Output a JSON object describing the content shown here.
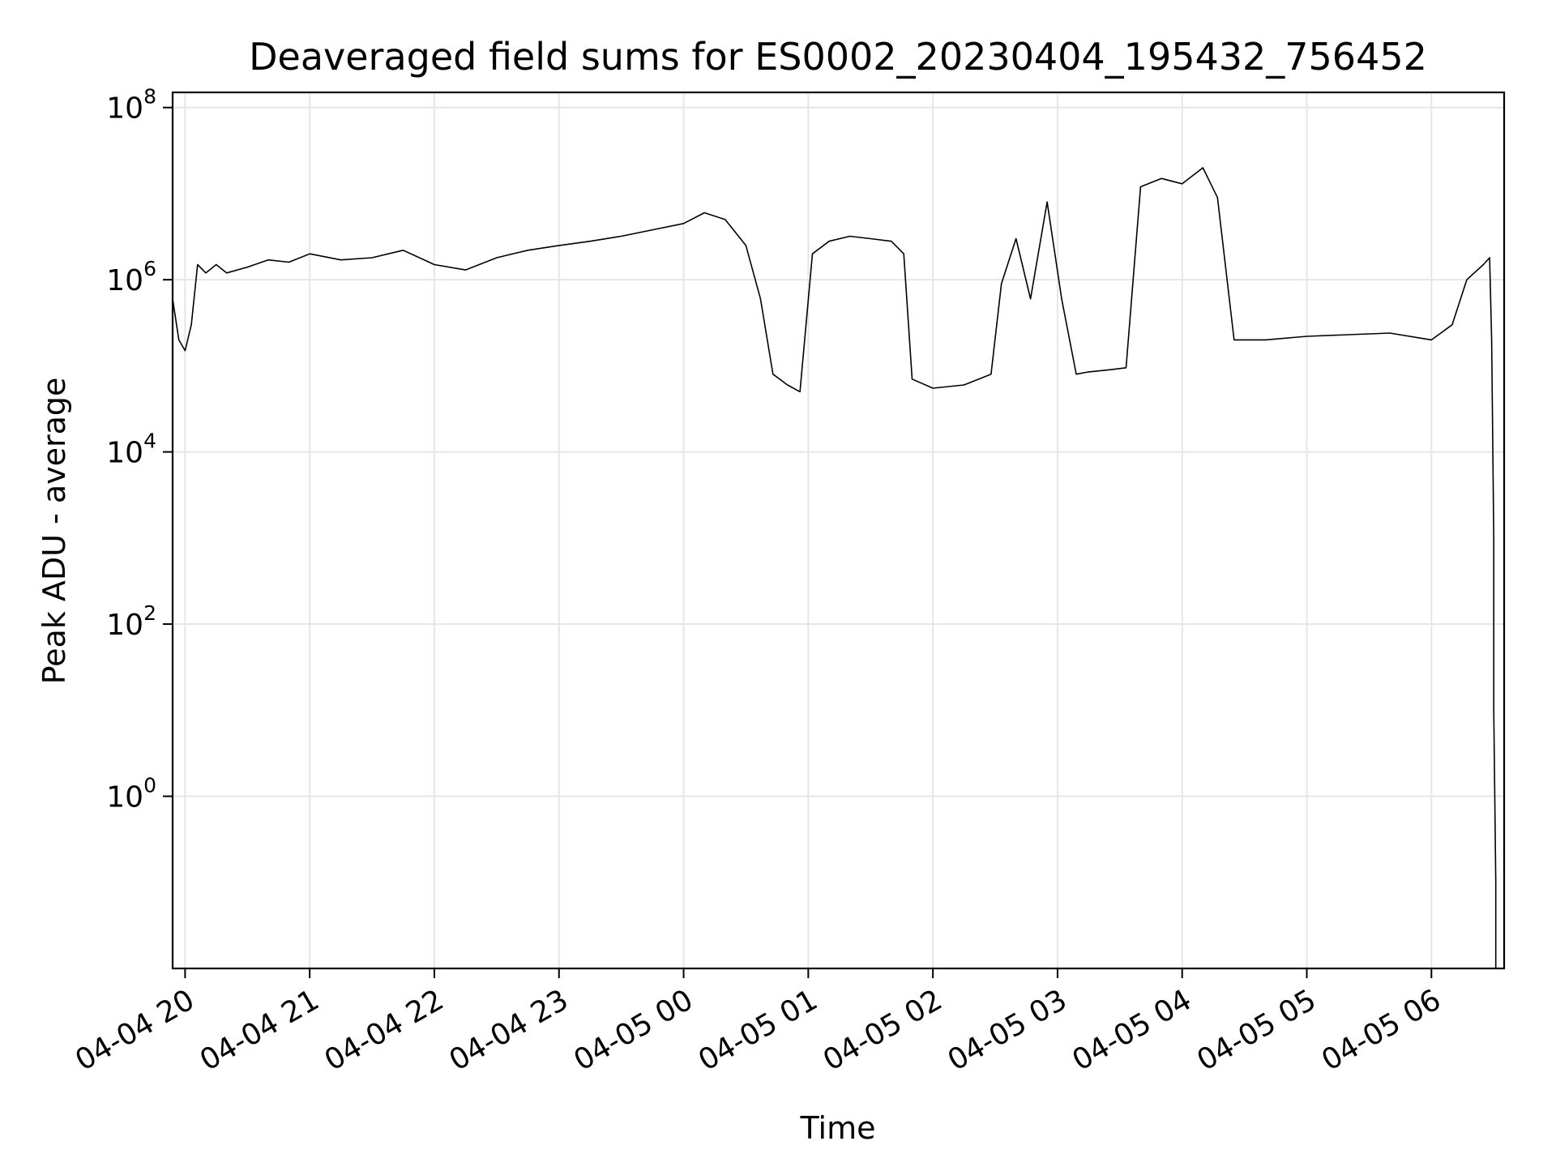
{
  "chart_data": {
    "type": "line",
    "title": "Deaveraged field sums for ES0002_20230404_195432_756452",
    "xlabel": "Time",
    "ylabel": "Peak ADU - average",
    "y_scale": "log",
    "ylim": [
      0.01,
      150000000
    ],
    "xlim": [
      "2023-04-04 19:54",
      "2023-04-05 06:35"
    ],
    "grid": true,
    "line_color": "#000000",
    "x_ticks": [
      {
        "value": "2023-04-04 20:00",
        "label": "04-04 20"
      },
      {
        "value": "2023-04-04 21:00",
        "label": "04-04 21"
      },
      {
        "value": "2023-04-04 22:00",
        "label": "04-04 22"
      },
      {
        "value": "2023-04-04 23:00",
        "label": "04-04 23"
      },
      {
        "value": "2023-04-05 00:00",
        "label": "04-05 00"
      },
      {
        "value": "2023-04-05 01:00",
        "label": "04-05 01"
      },
      {
        "value": "2023-04-05 02:00",
        "label": "04-05 02"
      },
      {
        "value": "2023-04-05 03:00",
        "label": "04-05 03"
      },
      {
        "value": "2023-04-05 04:00",
        "label": "04-05 04"
      },
      {
        "value": "2023-04-05 05:00",
        "label": "04-05 05"
      },
      {
        "value": "2023-04-05 06:00",
        "label": "04-05 06"
      }
    ],
    "y_ticks": [
      {
        "value": 1,
        "base": "10",
        "exp": "0"
      },
      {
        "value": 100,
        "base": "10",
        "exp": "2"
      },
      {
        "value": 10000,
        "base": "10",
        "exp": "4"
      },
      {
        "value": 1000000,
        "base": "10",
        "exp": "6"
      },
      {
        "value": 100000000,
        "base": "10",
        "exp": "8"
      }
    ],
    "series": [
      {
        "x": [
          "2023-04-04 19:54",
          "2023-04-04 19:57",
          "2023-04-04 20:00",
          "2023-04-04 20:03",
          "2023-04-04 20:06",
          "2023-04-04 20:10",
          "2023-04-04 20:15",
          "2023-04-04 20:20",
          "2023-04-04 20:30",
          "2023-04-04 20:40",
          "2023-04-04 20:50",
          "2023-04-04 21:00",
          "2023-04-04 21:15",
          "2023-04-04 21:30",
          "2023-04-04 21:45",
          "2023-04-04 22:00",
          "2023-04-04 22:15",
          "2023-04-04 22:30",
          "2023-04-04 22:45",
          "2023-04-04 23:00",
          "2023-04-04 23:15",
          "2023-04-04 23:30",
          "2023-04-04 23:45",
          "2023-04-05 00:00",
          "2023-04-05 00:10",
          "2023-04-05 00:20",
          "2023-04-05 00:30",
          "2023-04-05 00:37",
          "2023-04-05 00:43",
          "2023-04-05 00:50",
          "2023-04-05 00:56",
          "2023-04-05 01:02",
          "2023-04-05 01:10",
          "2023-04-05 01:20",
          "2023-04-05 01:30",
          "2023-04-05 01:40",
          "2023-04-05 01:46",
          "2023-04-05 01:50",
          "2023-04-05 02:00",
          "2023-04-05 02:15",
          "2023-04-05 02:28",
          "2023-04-05 02:33",
          "2023-04-05 02:40",
          "2023-04-05 02:47",
          "2023-04-05 02:55",
          "2023-04-05 03:02",
          "2023-04-05 03:09",
          "2023-04-05 03:15",
          "2023-04-05 03:25",
          "2023-04-05 03:33",
          "2023-04-05 03:40",
          "2023-04-05 03:50",
          "2023-04-05 04:00",
          "2023-04-05 04:10",
          "2023-04-05 04:17",
          "2023-04-05 04:25",
          "2023-04-05 04:40",
          "2023-04-05 05:00",
          "2023-04-05 05:20",
          "2023-04-05 05:40",
          "2023-04-05 06:00",
          "2023-04-05 06:10",
          "2023-04-05 06:17",
          "2023-04-05 06:25",
          "2023-04-05 06:28",
          "2023-04-05 06:29",
          "2023-04-05 06:30",
          "2023-04-05 06:30",
          "2023-04-05 06:31",
          "2023-04-05 06:31"
        ],
        "y": [
          600000,
          200000,
          150000,
          300000,
          1500000,
          1200000,
          1500000,
          1200000,
          1400000,
          1700000,
          1600000,
          2000000,
          1700000,
          1800000,
          2200000,
          1500000,
          1300000,
          1800000,
          2200000,
          2500000,
          2800000,
          3200000,
          3800000,
          4500000,
          6000000,
          5000000,
          2500000,
          600000,
          80000,
          60000,
          50000,
          2000000,
          2800000,
          3200000,
          3000000,
          2800000,
          2000000,
          70000,
          55000,
          60000,
          80000,
          900000,
          3000000,
          600000,
          8000000,
          600000,
          80000,
          85000,
          90000,
          95000,
          12000000,
          15000000,
          13000000,
          20000000,
          9000000,
          200000,
          200000,
          220000,
          230000,
          240000,
          200000,
          300000,
          1000000,
          1500000,
          1800000,
          200000,
          1000,
          10,
          0.1,
          0.01
        ]
      }
    ]
  }
}
